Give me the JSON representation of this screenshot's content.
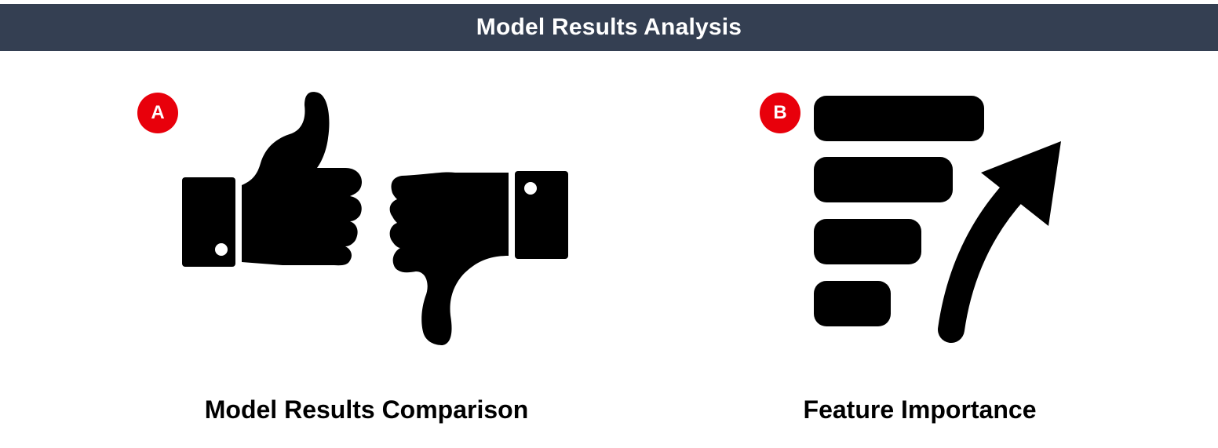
{
  "header": {
    "title": "Model Results Analysis"
  },
  "panels": [
    {
      "badge": "A",
      "caption": "Model Results Comparison",
      "icon": "thumbs-up-down-icon"
    },
    {
      "badge": "B",
      "caption": "Feature Importance",
      "icon": "feature-importance-icon"
    }
  ],
  "colors": {
    "header_bg": "#343f52",
    "header_text": "#ffffff",
    "badge": "#e8000b",
    "icon": "#000000"
  }
}
